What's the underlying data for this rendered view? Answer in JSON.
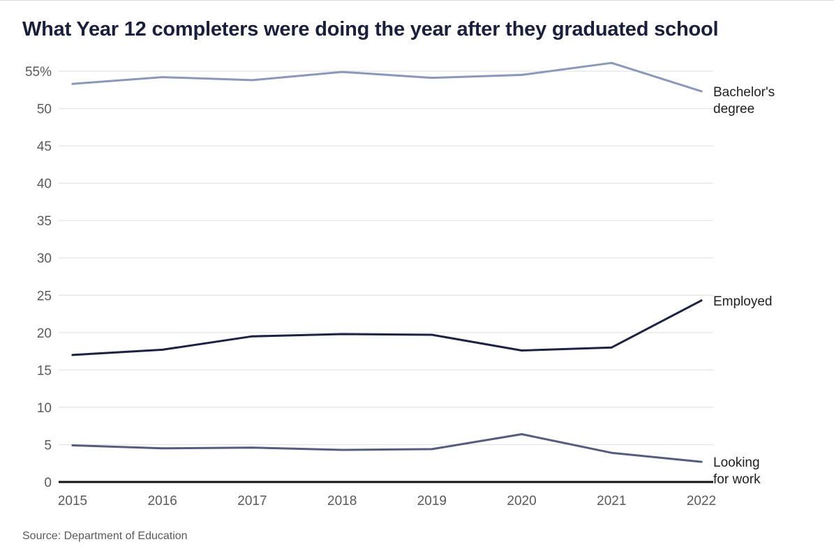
{
  "chart_data": {
    "type": "line",
    "title": "What Year 12 completers were doing the year after they graduated school",
    "x": [
      "2015",
      "2016",
      "2017",
      "2018",
      "2019",
      "2020",
      "2021",
      "2022"
    ],
    "series": [
      {
        "name": "Bachelor's degree",
        "label_lines": [
          "Bachelor's",
          "degree"
        ],
        "color": "#8a99b9",
        "values": [
          53.3,
          54.2,
          53.8,
          54.9,
          54.1,
          54.5,
          56.1,
          52.3
        ]
      },
      {
        "name": "Employed",
        "label_lines": [
          "Employed"
        ],
        "color": "#1c2342",
        "values": [
          17.0,
          17.7,
          19.5,
          19.8,
          19.7,
          17.6,
          18.0,
          24.3
        ]
      },
      {
        "name": "Looking for work",
        "label_lines": [
          "Looking",
          "for work"
        ],
        "color": "#555d7c",
        "values": [
          4.9,
          4.5,
          4.6,
          4.3,
          4.4,
          6.4,
          3.9,
          2.7
        ]
      }
    ],
    "yticks": [
      0,
      5,
      10,
      15,
      20,
      25,
      30,
      35,
      40,
      45,
      50,
      55
    ],
    "ytick_labels": [
      "0",
      "5",
      "10",
      "15",
      "20",
      "25",
      "30",
      "35",
      "40",
      "45",
      "50",
      "55%"
    ],
    "ylim": [
      0,
      55
    ],
    "xlabel": "",
    "ylabel": "",
    "grid": true,
    "legend": "direct labels at line ends"
  },
  "source": "Source: Department of Education"
}
